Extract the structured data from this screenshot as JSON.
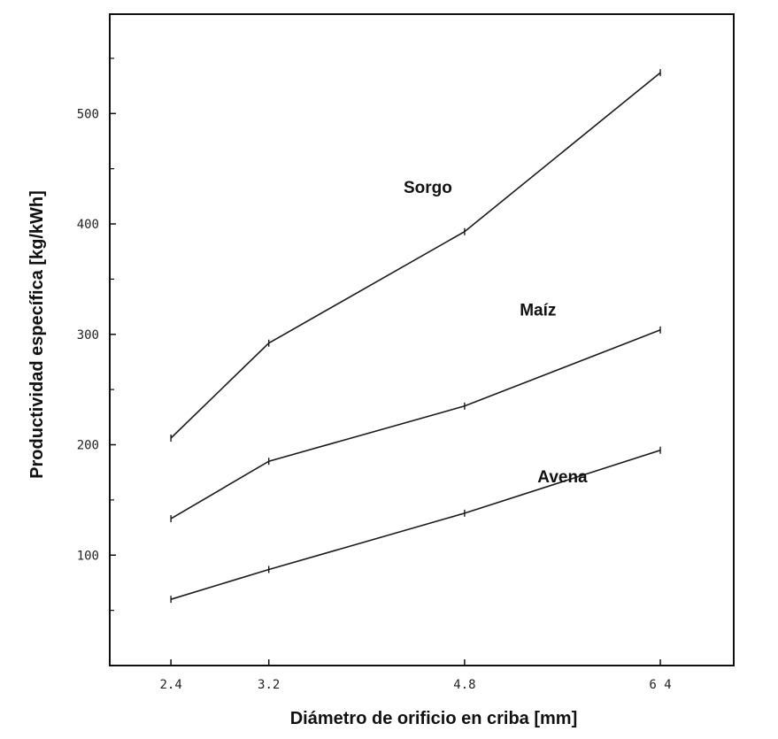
{
  "chart_data": {
    "type": "line",
    "title": "",
    "xlabel": "Diámetro de orificio en criba [mm]",
    "ylabel": "Productividad específica [kg/kWh]",
    "x": [
      2.4,
      3.2,
      4.8,
      6.4
    ],
    "x_tick_labels": [
      "2.4",
      "3.2",
      "4.8",
      "6 4"
    ],
    "y_ticks": [
      100,
      200,
      300,
      400,
      500
    ],
    "y_tick_labels": [
      "100",
      "200",
      "300",
      "400",
      "500"
    ],
    "xlim": [
      1.9,
      7.0
    ],
    "ylim": [
      0,
      590
    ],
    "grid": false,
    "series": [
      {
        "name": "Sorgo",
        "values": [
          206,
          292,
          393,
          537
        ]
      },
      {
        "name": "Maíz",
        "values": [
          133,
          185,
          235,
          304
        ]
      },
      {
        "name": "Avena",
        "values": [
          60,
          87,
          138,
          195
        ]
      }
    ],
    "line_color": "#1a1a1a"
  }
}
